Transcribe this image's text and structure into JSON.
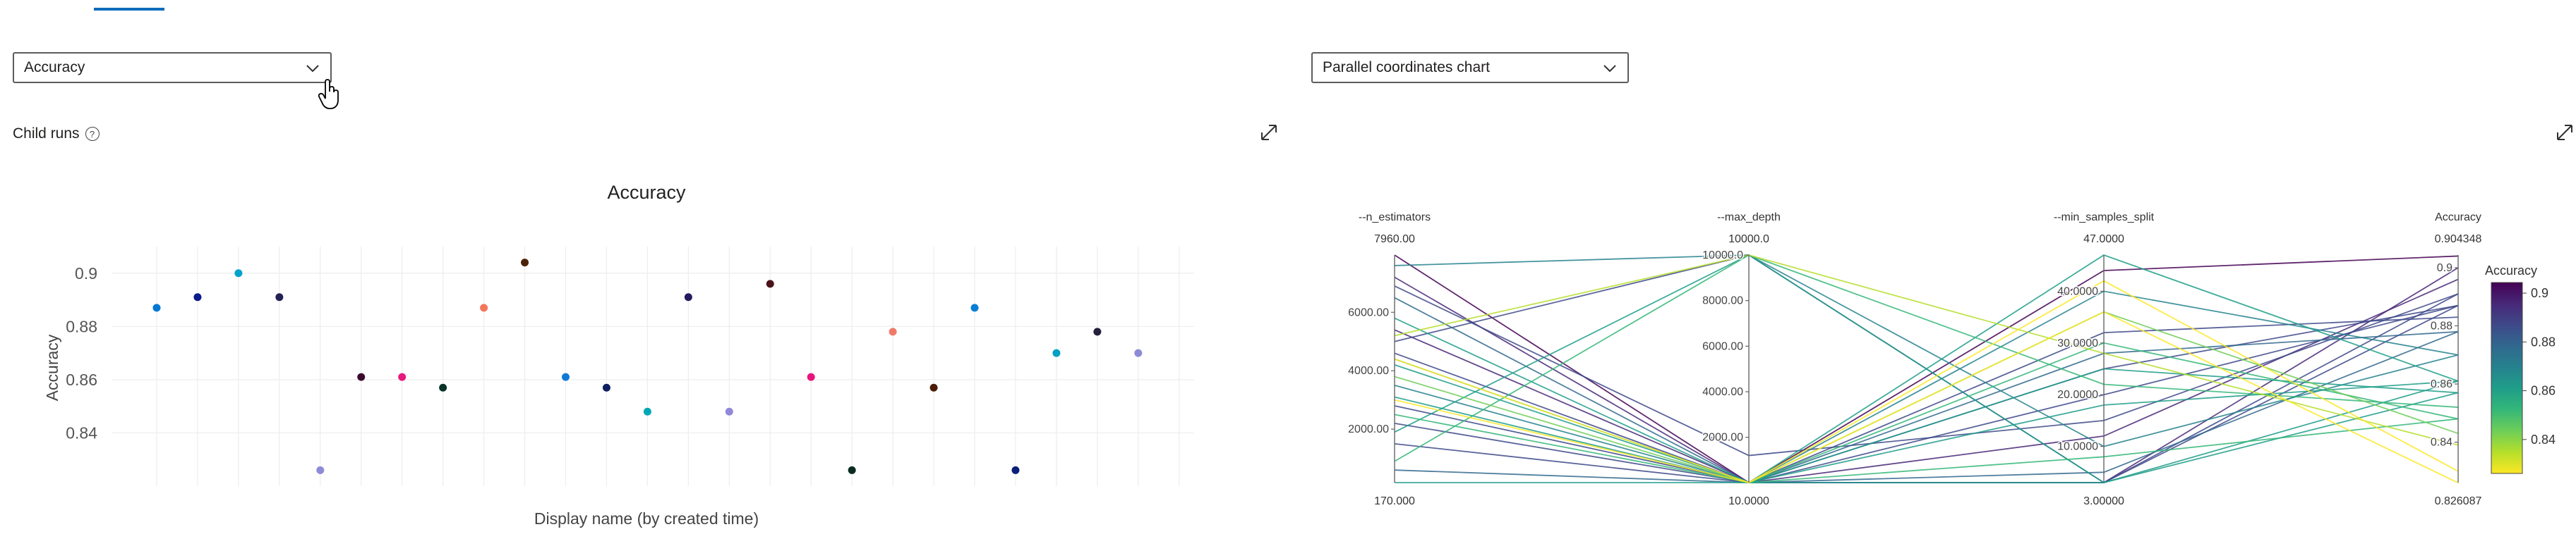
{
  "left_panel": {
    "metric_dropdown": {
      "value": "Accuracy"
    },
    "section_label": "Child runs",
    "help_icon": "?"
  },
  "right_panel": {
    "chart_type_dropdown": {
      "value": "Parallel coordinates chart"
    }
  },
  "icons": {
    "expand": "expand-icon",
    "chevron": "chevron-down-icon",
    "help": "help-icon",
    "cursor": "hand-cursor-icon"
  },
  "chart_data": [
    {
      "type": "scatter",
      "title": "Accuracy",
      "xlabel": "Display name (by created time)",
      "ylabel": "Accuracy",
      "ylim": [
        0.82,
        0.91
      ],
      "yticks": [
        "0.9",
        "0.88",
        "0.86",
        "0.84"
      ],
      "grid": true,
      "points": [
        {
          "y": 0.887,
          "color": "#0078d4"
        },
        {
          "y": 0.891,
          "color": "#0b1a8c"
        },
        {
          "y": 0.9,
          "color": "#00a2c9"
        },
        {
          "y": 0.891,
          "color": "#232054"
        },
        {
          "y": 0.826,
          "color": "#8d8bd6"
        },
        {
          "y": 0.861,
          "color": "#3b0b2e"
        },
        {
          "y": 0.861,
          "color": "#e8187c"
        },
        {
          "y": 0.857,
          "color": "#0a3328"
        },
        {
          "y": 0.887,
          "color": "#f3755c"
        },
        {
          "y": 0.904,
          "color": "#4a2307"
        },
        {
          "y": 0.861,
          "color": "#0f7ad6"
        },
        {
          "y": 0.857,
          "color": "#0f1f60"
        },
        {
          "y": 0.848,
          "color": "#00a7b5"
        },
        {
          "y": 0.891,
          "color": "#241a5c"
        },
        {
          "y": 0.848,
          "color": "#9089d8"
        },
        {
          "y": 0.896,
          "color": "#4a1419"
        },
        {
          "y": 0.861,
          "color": "#e8147c"
        },
        {
          "y": 0.826,
          "color": "#0a2b22"
        },
        {
          "y": 0.878,
          "color": "#f07a6a"
        },
        {
          "y": 0.857,
          "color": "#4a1d07"
        },
        {
          "y": 0.887,
          "color": "#0a7ed4"
        },
        {
          "y": 0.826,
          "color": "#0b1f7a"
        },
        {
          "y": 0.87,
          "color": "#00a1c2"
        },
        {
          "y": 0.878,
          "color": "#241f3c"
        },
        {
          "y": 0.87,
          "color": "#8d8ad6"
        }
      ]
    },
    {
      "type": "parallel-coordinates",
      "axes": [
        {
          "name": "--n_estimators",
          "top_label": "7960.00",
          "bottom_label": "170.000",
          "min": 170,
          "max": 7960,
          "ticks": [
            "6000.00",
            "4000.00",
            "2000.00"
          ],
          "tick_values": [
            6000,
            4000,
            2000
          ]
        },
        {
          "name": "--max_depth",
          "top_label": "10000.0",
          "bottom_label": "10.0000",
          "min": 10,
          "max": 10000,
          "ticks": [
            "10000.0",
            "8000.00",
            "6000.00",
            "4000.00",
            "2000.00"
          ],
          "tick_values": [
            10000,
            8000,
            6000,
            4000,
            2000
          ]
        },
        {
          "name": "--min_samples_split",
          "top_label": "47.0000",
          "bottom_label": "3.00000",
          "min": 3,
          "max": 47,
          "ticks": [
            "40.0000",
            "30.0000",
            "20.0000",
            "10.0000"
          ],
          "tick_values": [
            40,
            30,
            20,
            10
          ]
        },
        {
          "name": "Accuracy",
          "top_label": "0.904348",
          "bottom_label": "0.826087",
          "min": 0.826087,
          "max": 0.904348,
          "ticks": [
            "0.9",
            "0.88",
            "0.86",
            "0.84"
          ],
          "tick_values": [
            0.9,
            0.88,
            0.86,
            0.84
          ]
        }
      ],
      "colorbar": {
        "title": "Accuracy",
        "ticks": [
          "0.9",
          "0.88",
          "0.86",
          "0.84"
        ],
        "tick_values": [
          0.9,
          0.88,
          0.86,
          0.84
        ],
        "min": 0.826087,
        "max": 0.904348,
        "colorscale": [
          "#fde725",
          "#5ec962",
          "#21918c",
          "#3b528b",
          "#440154"
        ]
      },
      "lines": [
        [
          7960,
          10,
          44,
          0.904
        ],
        [
          7200,
          10,
          3,
          0.9
        ],
        [
          5400,
          10,
          12,
          0.896
        ],
        [
          2800,
          10,
          3,
          0.891
        ],
        [
          6900,
          1200,
          15,
          0.891
        ],
        [
          2200,
          10,
          25,
          0.887
        ],
        [
          4600,
          10,
          20,
          0.887
        ],
        [
          5000,
          10000,
          3,
          0.887
        ],
        [
          1500,
          10,
          32,
          0.883
        ],
        [
          6500,
          10,
          5,
          0.878
        ],
        [
          600,
          10,
          28,
          0.878
        ],
        [
          3500,
          10,
          40,
          0.87
        ],
        [
          7600,
          10000,
          10,
          0.87
        ],
        [
          170,
          10,
          47,
          0.861
        ],
        [
          4200,
          10,
          18,
          0.861
        ],
        [
          1900,
          10000,
          3,
          0.861
        ],
        [
          3100,
          10,
          25,
          0.857
        ],
        [
          5800,
          10,
          3,
          0.857
        ],
        [
          900,
          10000,
          22,
          0.852
        ],
        [
          4400,
          10,
          30,
          0.848
        ],
        [
          2500,
          10,
          8,
          0.848
        ],
        [
          3800,
          10,
          36,
          0.843
        ],
        [
          5200,
          10000,
          28,
          0.839
        ],
        [
          3000,
          10,
          42,
          0.83
        ],
        [
          4400,
          10,
          36,
          0.826
        ]
      ]
    }
  ]
}
